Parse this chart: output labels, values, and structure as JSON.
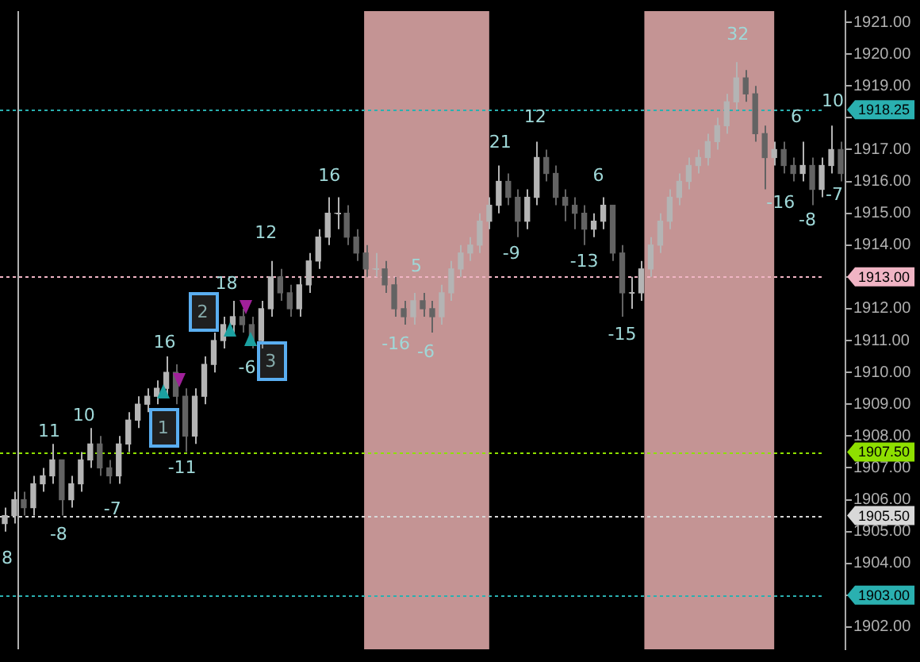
{
  "chart_data": {
    "type": "candlestick",
    "categories": [
      null,
      null,
      null,
      null,
      null,
      null,
      null,
      null,
      null,
      null,
      null,
      null,
      null,
      null,
      null,
      null,
      null,
      null,
      null,
      null,
      null,
      null,
      null,
      null,
      null,
      null,
      null,
      null,
      null,
      null,
      null,
      null,
      null,
      null,
      null,
      null,
      null,
      null,
      null,
      null,
      null,
      null,
      null,
      null,
      null,
      null,
      null,
      null,
      null,
      null,
      null,
      null,
      null,
      null,
      null,
      null,
      null,
      null,
      null,
      null,
      null,
      null,
      null,
      null,
      null,
      null,
      null,
      null,
      null,
      null,
      null,
      null,
      null,
      null,
      null,
      null,
      null,
      null,
      null,
      null,
      null,
      null,
      null,
      null,
      null,
      null,
      null,
      null,
      null
    ],
    "ohlc": [
      [
        1905.25,
        1905.75,
        1905.0,
        1905.5
      ],
      [
        1905.5,
        1906.25,
        1905.25,
        1906.0
      ],
      [
        1906.0,
        1906.25,
        1905.5,
        1905.75
      ],
      [
        1905.75,
        1906.75,
        1905.5,
        1906.5
      ],
      [
        1906.5,
        1907.0,
        1906.25,
        1906.75
      ],
      [
        1906.75,
        1907.75,
        1906.5,
        1907.25
      ],
      [
        1907.25,
        1907.25,
        1905.5,
        1906.0
      ],
      [
        1906.0,
        1906.75,
        1905.75,
        1906.5
      ],
      [
        1906.5,
        1907.5,
        1906.25,
        1907.25
      ],
      [
        1907.25,
        1908.25,
        1907.0,
        1907.75
      ],
      [
        1907.75,
        1908.0,
        1906.75,
        1907.0
      ],
      [
        1907.0,
        1907.25,
        1906.5,
        1906.75
      ],
      [
        1906.75,
        1908.0,
        1906.5,
        1907.75
      ],
      [
        1907.75,
        1908.75,
        1907.5,
        1908.5
      ],
      [
        1908.5,
        1909.25,
        1908.25,
        1909.0
      ],
      [
        1909.0,
        1909.5,
        1908.75,
        1909.25
      ],
      [
        1909.25,
        1909.75,
        1909.0,
        1909.5
      ],
      [
        1909.5,
        1910.5,
        1909.25,
        1910.0
      ],
      [
        1910.0,
        1910.25,
        1909.0,
        1909.25
      ],
      [
        1909.25,
        1909.5,
        1907.5,
        1908.0
      ],
      [
        1908.0,
        1909.5,
        1907.75,
        1909.25
      ],
      [
        1909.25,
        1910.5,
        1909.0,
        1910.25
      ],
      [
        1910.25,
        1911.25,
        1910.0,
        1911.0
      ],
      [
        1911.0,
        1911.75,
        1910.75,
        1911.5
      ],
      [
        1911.5,
        1912.25,
        1911.25,
        1911.75
      ],
      [
        1911.75,
        1912.0,
        1911.25,
        1911.5
      ],
      [
        1911.5,
        1911.75,
        1910.75,
        1911.0
      ],
      [
        1911.0,
        1912.25,
        1910.75,
        1912.0
      ],
      [
        1912.0,
        1913.5,
        1911.75,
        1913.0
      ],
      [
        1913.0,
        1913.25,
        1912.25,
        1912.5
      ],
      [
        1912.5,
        1912.75,
        1911.75,
        1912.0
      ],
      [
        1912.0,
        1913.0,
        1911.75,
        1912.75
      ],
      [
        1912.75,
        1913.75,
        1912.5,
        1913.5
      ],
      [
        1913.5,
        1914.5,
        1913.25,
        1914.25
      ],
      [
        1914.25,
        1915.5,
        1914.0,
        1915.0
      ],
      [
        1915.0,
        1915.5,
        1914.5,
        1915.0
      ],
      [
        1915.0,
        1915.25,
        1914.0,
        1914.25
      ],
      [
        1914.25,
        1914.5,
        1913.5,
        1913.75
      ],
      [
        1913.75,
        1914.0,
        1913.0,
        1913.25
      ],
      [
        1913.25,
        1913.75,
        1913.0,
        1913.25
      ],
      [
        1913.25,
        1913.5,
        1912.5,
        1912.75
      ],
      [
        1912.75,
        1913.0,
        1911.75,
        1912.0
      ],
      [
        1912.0,
        1912.25,
        1911.5,
        1911.75
      ],
      [
        1911.75,
        1912.5,
        1911.5,
        1912.25
      ],
      [
        1912.25,
        1912.5,
        1911.75,
        1912.0
      ],
      [
        1912.0,
        1912.25,
        1911.25,
        1911.75
      ],
      [
        1911.75,
        1912.75,
        1911.5,
        1912.5
      ],
      [
        1912.5,
        1913.5,
        1912.25,
        1913.25
      ],
      [
        1913.25,
        1914.0,
        1913.0,
        1913.75
      ],
      [
        1913.75,
        1914.25,
        1913.5,
        1914.0
      ],
      [
        1914.0,
        1915.0,
        1913.75,
        1914.75
      ],
      [
        1914.75,
        1915.5,
        1914.5,
        1915.25
      ],
      [
        1915.25,
        1916.5,
        1915.0,
        1916.0
      ],
      [
        1916.0,
        1916.25,
        1915.25,
        1915.5
      ],
      [
        1915.5,
        1915.75,
        1914.25,
        1914.75
      ],
      [
        1914.75,
        1915.75,
        1914.5,
        1915.5
      ],
      [
        1915.5,
        1917.25,
        1915.25,
        1916.75
      ],
      [
        1916.75,
        1917.0,
        1916.0,
        1916.25
      ],
      [
        1916.25,
        1916.5,
        1915.25,
        1915.5
      ],
      [
        1915.5,
        1915.75,
        1914.75,
        1915.25
      ],
      [
        1915.25,
        1915.5,
        1914.5,
        1915.0
      ],
      [
        1915.0,
        1915.25,
        1914.0,
        1914.5
      ],
      [
        1914.5,
        1915.0,
        1914.25,
        1914.75
      ],
      [
        1914.75,
        1915.5,
        1914.5,
        1915.25
      ],
      [
        1915.25,
        1915.25,
        1913.5,
        1913.75
      ],
      [
        1913.75,
        1914.0,
        1911.75,
        1912.5
      ],
      [
        1912.5,
        1913.0,
        1912.0,
        1912.5
      ],
      [
        1912.5,
        1913.5,
        1912.25,
        1913.25
      ],
      [
        1913.25,
        1914.25,
        1913.0,
        1914.0
      ],
      [
        1914.0,
        1915.0,
        1913.75,
        1914.75
      ],
      [
        1914.75,
        1915.75,
        1914.5,
        1915.5
      ],
      [
        1915.5,
        1916.25,
        1915.25,
        1916.0
      ],
      [
        1916.0,
        1916.75,
        1915.75,
        1916.5
      ],
      [
        1916.5,
        1917.0,
        1916.25,
        1916.75
      ],
      [
        1916.75,
        1917.5,
        1916.5,
        1917.25
      ],
      [
        1917.25,
        1918.0,
        1917.0,
        1917.75
      ],
      [
        1917.75,
        1918.75,
        1917.5,
        1918.5
      ],
      [
        1918.5,
        1919.75,
        1918.25,
        1919.25
      ],
      [
        1919.25,
        1919.5,
        1918.5,
        1918.75
      ],
      [
        1918.75,
        1919.0,
        1917.25,
        1917.5
      ],
      [
        1917.5,
        1917.75,
        1915.75,
        1916.75
      ],
      [
        1916.75,
        1917.25,
        1916.5,
        1917.0
      ],
      [
        1917.0,
        1917.25,
        1916.25,
        1916.5
      ],
      [
        1916.5,
        1916.75,
        1916.0,
        1916.25
      ],
      [
        1916.25,
        1917.25,
        1916.0,
        1916.5
      ],
      [
        1916.5,
        1916.75,
        1915.25,
        1915.75
      ],
      [
        1915.75,
        1916.75,
        1915.5,
        1916.5
      ],
      [
        1916.5,
        1917.75,
        1916.25,
        1917.0
      ],
      [
        1917.0,
        1917.25,
        1916.0,
        1916.25
      ]
    ],
    "colors": [
      "#b4b4b4",
      "#b4b4b4",
      "#636363",
      "#b4b4b4",
      "#b4b4b4",
      "#b4b4b4",
      "#636363",
      "#b4b4b4",
      "#b4b4b4",
      "#b4b4b4",
      "#636363",
      "#636363",
      "#b4b4b4",
      "#b4b4b4",
      "#b4b4b4",
      "#b4b4b4",
      "#b4b4b4",
      "#b4b4b4",
      "#636363",
      "#636363",
      "#b4b4b4",
      "#b4b4b4",
      "#b4b4b4",
      "#b4b4b4",
      "#b4b4b4",
      "#636363",
      "#636363",
      "#b4b4b4",
      "#b4b4b4",
      "#636363",
      "#636363",
      "#b4b4b4",
      "#b4b4b4",
      "#b4b4b4",
      "#b4b4b4",
      "#b4b4b4",
      "#636363",
      "#636363",
      "#636363",
      "#b4b4b4",
      "#636363",
      "#636363",
      "#636363",
      "#b4b4b4",
      "#636363",
      "#636363",
      "#b4b4b4",
      "#b4b4b4",
      "#b4b4b4",
      "#b4b4b4",
      "#b4b4b4",
      "#b4b4b4",
      "#b4b4b4",
      "#636363",
      "#636363",
      "#b4b4b4",
      "#b4b4b4",
      "#636363",
      "#636363",
      "#636363",
      "#636363",
      "#636363",
      "#b4b4b4",
      "#b4b4b4",
      "#636363",
      "#636363",
      "#b4b4b4",
      "#b4b4b4",
      "#b4b4b4",
      "#b4b4b4",
      "#b4b4b4",
      "#b4b4b4",
      "#b4b4b4",
      "#b4b4b4",
      "#b4b4b4",
      "#b4b4b4",
      "#b4b4b4",
      "#b4b4b4",
      "#636363",
      "#636363",
      "#636363",
      "#b4b4b4",
      "#636363",
      "#636363",
      "#b4b4b4",
      "#636363",
      "#b4b4b4",
      "#b4b4b4",
      "#636363"
    ],
    "ylim": [
      1901.3,
      1921.35
    ],
    "yticks": [
      {
        "value": 1902,
        "label": "1902.00"
      },
      {
        "value": 1903,
        "label": null
      },
      {
        "value": 1904,
        "label": "1904.00"
      },
      {
        "value": 1905,
        "label": "1905.00"
      },
      {
        "value": 1906,
        "label": "1906.00"
      },
      {
        "value": 1907,
        "label": "1907.00"
      },
      {
        "value": 1908,
        "label": "1908.00"
      },
      {
        "value": 1909,
        "label": "1909.00"
      },
      {
        "value": 1910,
        "label": "1910.00"
      },
      {
        "value": 1911,
        "label": "1911.00"
      },
      {
        "value": 1912,
        "label": "1912.00"
      },
      {
        "value": 1913,
        "label": null
      },
      {
        "value": 1914,
        "label": "1914.00"
      },
      {
        "value": 1915,
        "label": "1915.00"
      },
      {
        "value": 1916,
        "label": "1916.00"
      },
      {
        "value": 1917,
        "label": "1917.00"
      },
      {
        "value": 1918,
        "label": null
      },
      {
        "value": 1919,
        "label": "1919.00"
      },
      {
        "value": 1920,
        "label": "1920.00"
      },
      {
        "value": 1921,
        "label": "1921.00"
      }
    ],
    "grid": false,
    "legend": false,
    "ref_lines": [
      {
        "axis": "y",
        "value": 1918.25,
        "label": "1918.25",
        "color": "#2ab0b0",
        "line_style": "dotted"
      },
      {
        "axis": "y",
        "value": 1913.0,
        "label": "1913.00",
        "color": "#f0b4c4",
        "line_style": "dotted"
      },
      {
        "axis": "y",
        "value": 1907.5,
        "label": "1907.50",
        "color": "#8ee000",
        "line_style": "dotted"
      },
      {
        "axis": "y",
        "value": 1905.5,
        "label": "1905.50",
        "color": "#d8d8d8",
        "line_style": "dotted"
      },
      {
        "axis": "y",
        "value": 1903.0,
        "label": "1903.00",
        "color": "#2ab0b0",
        "line_style": "dotted"
      },
      {
        "axis": "x",
        "color": "#b0b0b0",
        "line_style": "solid"
      }
    ],
    "annotations": [
      "8",
      "11",
      "-8",
      "10",
      "-7",
      "16",
      "-11",
      "18",
      "-6",
      "12",
      "16",
      "-16",
      "5",
      "-6",
      "21",
      "-9",
      "12",
      "-13",
      "6",
      "-15",
      "32",
      "-16",
      "6",
      "-8",
      "-7",
      "10",
      "1",
      "2",
      "3"
    ]
  }
}
